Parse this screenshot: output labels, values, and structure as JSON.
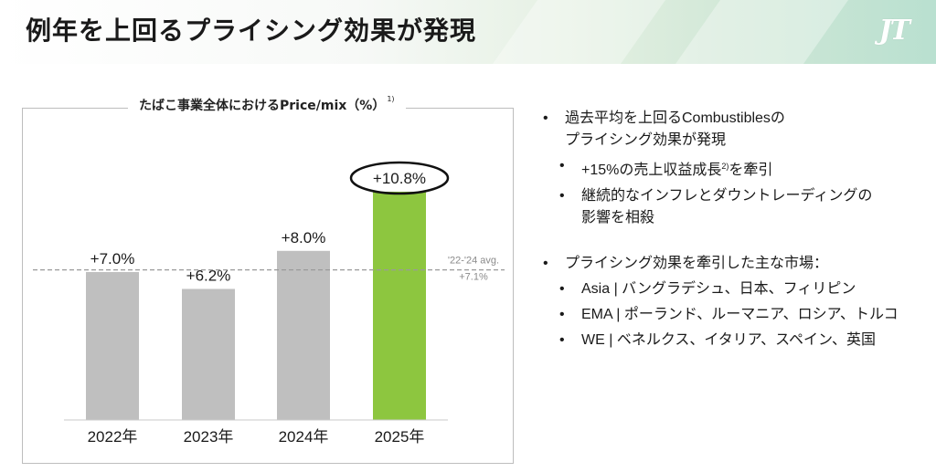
{
  "header": {
    "title": "例年を上回るプライシング効果が発現",
    "logo_text": "JT"
  },
  "chart": {
    "title": "たばこ事業全体におけるPrice/mix（%）",
    "title_note": "1)"
  },
  "chart_data": {
    "type": "bar",
    "categories": [
      "2022年",
      "2023年",
      "2024年",
      "2025年"
    ],
    "values": [
      7.0,
      6.2,
      8.0,
      10.8
    ],
    "data_labels": [
      "+7.0%",
      "+6.2%",
      "+8.0%",
      "+10.8%"
    ],
    "colors": [
      "#bfbfbf",
      "#bfbfbf",
      "#bfbfbf",
      "#8dc63f"
    ],
    "highlight_index": 3,
    "highlight_color": "#8dc63f",
    "bar_color": "#bfbfbf",
    "ylim": [
      0,
      11.3
    ],
    "reference_line": {
      "value": 7.1,
      "label_line1": "'22-'24 avg.",
      "label_line2": "+7.1%"
    },
    "grid": false,
    "legend": "none"
  },
  "bullets": {
    "group1": {
      "main_line1": "過去平均を上回るCombustiblesの",
      "main_line2": "プライシング効果が発現",
      "sub1_pre": "+15%の売上収益成長",
      "sub1_note": "2)",
      "sub1_post": "を牽引",
      "sub2_line1": "継続的なインフレとダウントレーディングの",
      "sub2_line2": "影響を相殺"
    },
    "group2": {
      "main": "プライシング効果を牽引した主な市場：",
      "sub1": "Asia | バングラデシュ、日本、フィリピン",
      "sub2": "EMA | ポーランド、ルーマニア、ロシア、トルコ",
      "sub3": "WE | ベネルクス、イタリア、スペイン、英国"
    }
  }
}
